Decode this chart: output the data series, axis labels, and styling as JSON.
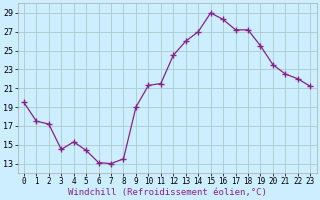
{
  "x": [
    0,
    1,
    2,
    3,
    4,
    5,
    6,
    7,
    8,
    9,
    10,
    11,
    12,
    13,
    14,
    15,
    16,
    17,
    18,
    19,
    20,
    21,
    22,
    23
  ],
  "y": [
    19.5,
    17.5,
    17.2,
    14.5,
    15.3,
    14.4,
    13.1,
    13.0,
    13.5,
    19.0,
    21.3,
    21.5,
    24.5,
    26.0,
    27.0,
    29.0,
    28.3,
    27.2,
    27.2,
    25.5,
    23.5,
    22.5,
    22.0,
    21.2
  ],
  "line_color": "#882288",
  "marker_color": "#882288",
  "bg_color": "#cceeff",
  "grid_color": "#aacccc",
  "xlabel": "Windchill (Refroidissement éolien,°C)",
  "xlim": [
    -0.5,
    23.5
  ],
  "ylim": [
    12.0,
    30.0
  ],
  "yticks": [
    13,
    15,
    17,
    19,
    21,
    23,
    25,
    27,
    29
  ],
  "xticks": [
    0,
    1,
    2,
    3,
    4,
    5,
    6,
    7,
    8,
    9,
    10,
    11,
    12,
    13,
    14,
    15,
    16,
    17,
    18,
    19,
    20,
    21,
    22,
    23
  ]
}
